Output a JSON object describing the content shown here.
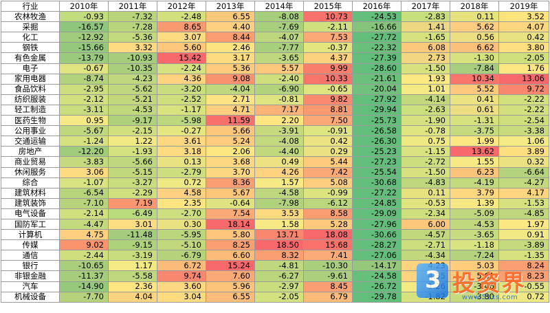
{
  "table": {
    "header": [
      "行业",
      "2010年",
      "2011年",
      "2012年",
      "2013年",
      "2014年",
      "2015年",
      "2016年",
      "2017年",
      "2018年",
      "2019年"
    ],
    "rows": [
      {
        "name": "农林牧渔",
        "values": [
          "-0.93",
          "-7.32",
          "-2.48",
          "6.55",
          "-8.08",
          "10.73",
          "-24.53",
          "-2.83",
          "0.11",
          "3.52"
        ],
        "colors": [
          "#c3dc7d",
          "#b9d57c",
          "#d3e17d",
          "#fbc97b",
          "#a7ce7c",
          "#f8716b",
          "#63be7b",
          "#c8df7e",
          "#e6e37f",
          "#fde47f"
        ]
      },
      {
        "name": "采掘",
        "values": [
          "-16.57",
          "-7.28",
          "8.65",
          "4.40",
          "-7.69",
          "-2.11",
          "-16.66",
          "1.41",
          "5.62",
          "4.07"
        ],
        "colors": [
          "#8ec67c",
          "#b9d57c",
          "#f9996f",
          "#fdd17f",
          "#a8cf7c",
          "#d0e07d",
          "#87c47b",
          "#ecd880",
          "#fccd80",
          "#fdd780"
        ]
      },
      {
        "name": "化工",
        "values": [
          "-12.92",
          "-5.36",
          "3.07",
          "8.44",
          "-4.07",
          "7.53",
          "-27.72",
          "-1.65",
          "0.56",
          "0.42"
        ],
        "colors": [
          "#a0cc7c",
          "#c2d97d",
          "#fddc81",
          "#fa9e72",
          "#bcd77d",
          "#fba977",
          "#63be7b",
          "#d5e27e",
          "#ecdf81",
          "#e9e281"
        ]
      },
      {
        "name": "钢铁",
        "values": [
          "-15.66",
          "3.32",
          "5.60",
          "2.46",
          "-7.77",
          "-0.37",
          "-22.32",
          "6.08",
          "6.62",
          "3.80"
        ],
        "colors": [
          "#95c87c",
          "#feda81",
          "#fdc87b",
          "#fde481",
          "#a8cf7c",
          "#e3e57f",
          "#6ac07b",
          "#fbc87c",
          "#fbc17b",
          "#fde07f"
        ]
      },
      {
        "name": "有色金属",
        "values": [
          "-13.79",
          "-10.93",
          "15.42",
          "3.17",
          "-3.65",
          "4.37",
          "-27.39",
          "2.73",
          "-1.30",
          "-2.05"
        ],
        "colors": [
          "#9bca7c",
          "#a6cd7c",
          "#f8696b",
          "#fddb80",
          "#bfd87d",
          "#fdd27f",
          "#63be7b",
          "#f2d780",
          "#d6e27e",
          "#d0e07d"
        ]
      },
      {
        "name": "电子",
        "values": [
          "-0.67",
          "-10.35",
          "-2.24",
          "5.36",
          "5.57",
          "9.99",
          "-28.60",
          "-1.50",
          "-7.84",
          "1.76"
        ],
        "colors": [
          "#dfe480",
          "#a9ce7c",
          "#d6e27e",
          "#fdcb7c",
          "#fcc97c",
          "#f97f6d",
          "#63be7b",
          "#d7e27e",
          "#a7ce7c",
          "#fbe682"
        ]
      },
      {
        "name": "家用电器",
        "values": [
          "-8.74",
          "-4.23",
          "4.36",
          "9.08",
          "-2.40",
          "10.33",
          "-21.61",
          "1.93",
          "10.34",
          "13.06"
        ],
        "colors": [
          "#b2d27c",
          "#bfd77d",
          "#fdd380",
          "#f9926f",
          "#d0df7e",
          "#f8756b",
          "#6bc07b",
          "#fde982",
          "#f8756b",
          "#f8696b"
        ]
      },
      {
        "name": "食品饮料",
        "values": [
          "-2.95",
          "-5.62",
          "-3.20",
          "-4.04",
          "-6.90",
          "-0.65",
          "-20.04",
          "1.01",
          "5.52",
          "9.72"
        ],
        "colors": [
          "#ccde7e",
          "#c0d87d",
          "#c9dd7e",
          "#bfd77d",
          "#b3d27c",
          "#e0e480",
          "#70c17b",
          "#f3ea84",
          "#fcca7c",
          "#f9876e"
        ]
      },
      {
        "name": "纺织服装",
        "values": [
          "-2.12",
          "-5.21",
          "-2.52",
          "2.71",
          "-0.81",
          "9.82",
          "-27.92",
          "-4.14",
          "0.41",
          "-2.22"
        ],
        "colors": [
          "#d2e07e",
          "#c1d87d",
          "#cfdf7e",
          "#fde381",
          "#dee480",
          "#f98a6f",
          "#63be7b",
          "#c2d87d",
          "#ebe282",
          "#d2e07e"
        ]
      },
      {
        "name": "轻工制造",
        "values": [
          "-3.11",
          "-4.53",
          "-1.17",
          "4.71",
          "7.17",
          "8.81",
          "-29.94",
          "-2.63",
          "0.61",
          "-2.22"
        ],
        "colors": [
          "#cadd7e",
          "#c1d87d",
          "#d8e37e",
          "#fdcf7e",
          "#fbb378",
          "#f99a70",
          "#63be7b",
          "#ccdf7e",
          "#ecdf81",
          "#d2e07e"
        ]
      },
      {
        "name": "医药生物",
        "values": [
          "0.95",
          "-9.17",
          "-5.98",
          "11.59",
          "2.20",
          "7.50",
          "-25.73",
          "-1.90",
          "-1.31",
          "-2.54"
        ],
        "colors": [
          "#f4e984",
          "#b0d17c",
          "#bdd77d",
          "#f8706b",
          "#fde581",
          "#fbaa77",
          "#63be7b",
          "#d4e17e",
          "#d6e27e",
          "#cfdf7e"
        ]
      },
      {
        "name": "公用事业",
        "values": [
          "-5.67",
          "-2.15",
          "-0.27",
          "5.66",
          "-3.91",
          "-0.91",
          "-26.58",
          "-0.78",
          "-3.75",
          "-3.38"
        ],
        "colors": [
          "#c0d87d",
          "#d1e07e",
          "#e6e680",
          "#fcc67b",
          "#c4da7d",
          "#dde480",
          "#63be7b",
          "#dee480",
          "#c6db7d",
          "#c8dc7e"
        ]
      },
      {
        "name": "交通运输",
        "values": [
          "-1.24",
          "1.22",
          "3.61",
          "5.24",
          "-4.08",
          "0.42",
          "-26.30",
          "0.75",
          "1.99",
          "1.06"
        ],
        "colors": [
          "#d7e27e",
          "#f1ea83",
          "#fdd880",
          "#fdcc7c",
          "#c3d97d",
          "#ebe282",
          "#63be7b",
          "#efe983",
          "#fbe882",
          "#f3ea84"
        ]
      },
      {
        "name": "房地产",
        "values": [
          "-12.20",
          "-1.93",
          "3.18",
          "2.06",
          "-4.40",
          "0.29",
          "-25.23",
          "-1.15",
          "13.62",
          "3.89"
        ],
        "colors": [
          "#a0cc7c",
          "#d3e17e",
          "#fddb80",
          "#fde781",
          "#c1d87d",
          "#eae281",
          "#64be7b",
          "#d9e37f",
          "#f8696b",
          "#fddf80"
        ]
      },
      {
        "name": "商业贸易",
        "values": [
          "-3.83",
          "-5.66",
          "0.13",
          "3.68",
          "0.49",
          "5.44",
          "-27.23",
          "-2.72",
          "1.55",
          "0.32"
        ],
        "colors": [
          "#c5da7d",
          "#bfd87d",
          "#e8e280",
          "#fdd880",
          "#ece282",
          "#fccb7c",
          "#63be7b",
          "#ccde7e",
          "#f7e983",
          "#eae281"
        ]
      },
      {
        "name": "休闲服务",
        "values": [
          "3.06",
          "-5.15",
          "-2.79",
          "3.70",
          "4.26",
          "7.42",
          "-25.54",
          "-1.50",
          "6.23",
          "-6.64"
        ],
        "colors": [
          "#fddc81",
          "#c1d87d",
          "#cdde7e",
          "#fdd880",
          "#fdd37f",
          "#fbaa77",
          "#63be7b",
          "#d7e27e",
          "#fbc47b",
          "#b5d37c"
        ]
      },
      {
        "name": "综合",
        "values": [
          "-1.07",
          "-3.27",
          "0.72",
          "8.36",
          "1.57",
          "5.08",
          "-30.68",
          "-4.83",
          "-4.19",
          "-4.27"
        ],
        "colors": [
          "#d9e37f",
          "#c9dd7e",
          "#efe983",
          "#fa9f72",
          "#f7e983",
          "#fccd7d",
          "#63be7b",
          "#bfd77d",
          "#c3d97d",
          "#c2d97d"
        ]
      },
      {
        "name": "建筑材料",
        "values": [
          "-6.54",
          "-2.29",
          "4.58",
          "5.67",
          "-4.58",
          "-0.99",
          "-27.22",
          "0.11",
          "3.79",
          "4.17"
        ],
        "colors": [
          "#b9d57c",
          "#d1e07e",
          "#fdd17f",
          "#fcc67b",
          "#c0d87d",
          "#dce480",
          "#63be7b",
          "#e6e37f",
          "#fdd87f",
          "#fdd57f"
        ]
      },
      {
        "name": "建筑装饰",
        "values": [
          "-7.10",
          "7.19",
          "2.35",
          "-0.64",
          "-7.98",
          "-6.12",
          "-24.85",
          "-0.53",
          "1.39",
          "-1.53"
        ],
        "colors": [
          "#b7d47c",
          "#fa9771",
          "#fde581",
          "#e0e480",
          "#b1d27c",
          "#bcd67d",
          "#65bf7b",
          "#e1e580",
          "#f6e983",
          "#d6e27e"
        ]
      },
      {
        "name": "电气设备",
        "values": [
          "-2.14",
          "-6.49",
          "-2.70",
          "7.54",
          "3.53",
          "8.58",
          "-29.09",
          "-2.34",
          "-5.09",
          "-4.85"
        ],
        "colors": [
          "#d1e07e",
          "#badc7d",
          "#cddf7e",
          "#fba977",
          "#fdda80",
          "#f99e71",
          "#63be7b",
          "#cfdf7e",
          "#bfd87d",
          "#c0d87d"
        ]
      },
      {
        "name": "国防军工",
        "values": [
          "-4.47",
          "3.01",
          "0.30",
          "18.14",
          "1.58",
          "5.28",
          "-27.96",
          "6.00",
          "-4.53",
          "1.97"
        ],
        "colors": [
          "#c3d97d",
          "#fddd81",
          "#eae281",
          "#f8696b",
          "#f7e983",
          "#fcca7c",
          "#63be7b",
          "#fbc77b",
          "#c1d87d",
          "#fbe882"
        ]
      },
      {
        "name": "计算机",
        "values": [
          "4.75",
          "-11.48",
          "-5.95",
          "5.80",
          "13.71",
          "18.08",
          "-30.66",
          "-4.57",
          "-3.65",
          "0.91"
        ],
        "colors": [
          "#fdcf7e",
          "#a3cd7c",
          "#bcd67d",
          "#fcc57b",
          "#f9866e",
          "#f8696b",
          "#63be7b",
          "#c1d87d",
          "#c7dc7e",
          "#f1e983"
        ]
      },
      {
        "name": "传媒",
        "values": [
          "9.02",
          "-9.15",
          "-5.10",
          "8.25",
          "18.50",
          "15.68",
          "-28.27",
          "-2.71",
          "-1.18",
          "-3.89"
        ],
        "colors": [
          "#f9946f",
          "#aed17c",
          "#c1d87d",
          "#fa9f72",
          "#f8696b",
          "#f8736b",
          "#63be7b",
          "#ccde7e",
          "#d9e37f",
          "#c5da7d"
        ]
      },
      {
        "name": "通信",
        "values": [
          "-2.44",
          "-3.19",
          "-6.79",
          "6.60",
          "8.32",
          "7.41",
          "-27.06",
          "-4.34",
          "-7.24",
          "-1.35"
        ],
        "colors": [
          "#cfdf7e",
          "#c9dd7e",
          "#b6d37c",
          "#fbbc79",
          "#fa9f72",
          "#fbab77",
          "#63be7b",
          "#c2d87d",
          "#b4d37c",
          "#d7e27e"
        ]
      },
      {
        "name": "银行",
        "values": [
          "-10.65",
          "1.17",
          "6.72",
          "15.24",
          "-4.81",
          "-10.30",
          "-14.17",
          "4.23",
          "5.03",
          "8.24"
        ],
        "colors": [
          "#a8ce7c",
          "#f3ea84",
          "#fbbc79",
          "#f8696b",
          "#bfd87d",
          "#a9ce7c",
          "#96c87c",
          "#fdd37f",
          "#fdcd7c",
          "#fa9f72"
        ]
      },
      {
        "name": "非银金融",
        "values": [
          "-11.37",
          "-5.58",
          "9.74",
          "7.60",
          "-6.27",
          "-9.61",
          "-24.58",
          "4.35",
          "5.61",
          "8.23"
        ],
        "colors": [
          "#a5cd7c",
          "#c0d87d",
          "#f9866e",
          "#fba977",
          "#bbd57d",
          "#abcf7c",
          "#66bf7b",
          "#fdd37f",
          "#fcc97c",
          "#fa9f72"
        ]
      },
      {
        "name": "汽车",
        "values": [
          "-14.90",
          "2.36",
          "3.60",
          "5.96",
          "-2.97",
          "8.45",
          "-26.72",
          "1.26",
          "-3.46",
          "-0.55"
        ],
        "colors": [
          "#97c97c",
          "#fde581",
          "#fdd880",
          "#fcc47b",
          "#cadd7e",
          "#fa9f72",
          "#63be7b",
          "#f4ea84",
          "#c8dc7e",
          "#e0e480"
        ]
      },
      {
        "name": "机械设备",
        "values": [
          "-7.70",
          "4.04",
          "3.04",
          "6.55",
          "-2.05",
          "6.79",
          "-29.78",
          "-1.82",
          "-3.80",
          "0.72"
        ],
        "colors": [
          "#b4d37c",
          "#fdd580",
          "#fddc81",
          "#fbbd79",
          "#d3e17e",
          "#fbbb79",
          "#63be7b",
          "#d5e27e",
          "#c6db7d",
          "#efe983"
        ]
      }
    ]
  },
  "watermark": {
    "logo_glyph": "3",
    "brand": "投资界",
    "url": "www.51xs.com"
  }
}
